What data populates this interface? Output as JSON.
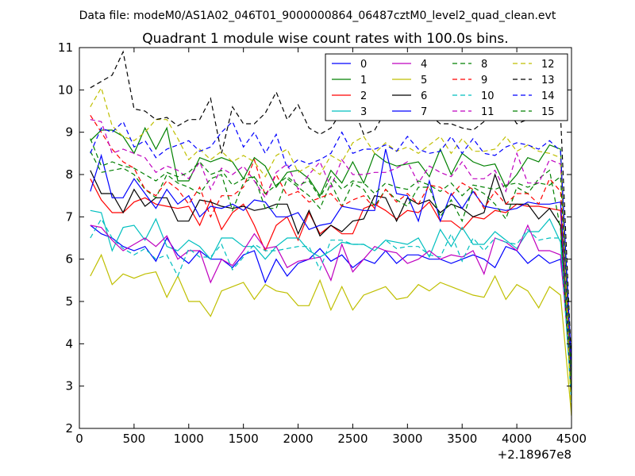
{
  "chart_data": {
    "type": "line",
    "suptitle": "Data file: modeM0/AS1A02_046T01_9000000864_06487cztM0_level2_quad_clean.evt",
    "title": "Quadrant 1 module wise count rates with 100.0s bins.",
    "xlabel": "",
    "ylabel": "",
    "x_offset_label": "+2.18967e8",
    "xlim": [
      0,
      4500
    ],
    "ylim": [
      2,
      11
    ],
    "xticks": [
      0,
      500,
      1000,
      1500,
      2000,
      2500,
      3000,
      3500,
      4000,
      4500
    ],
    "yticks": [
      2,
      3,
      4,
      5,
      6,
      7,
      8,
      9,
      10,
      11
    ],
    "x": [
      100,
      200,
      300,
      400,
      500,
      600,
      700,
      800,
      900,
      1000,
      1100,
      1200,
      1300,
      1400,
      1500,
      1600,
      1700,
      1800,
      1900,
      2000,
      2100,
      2200,
      2300,
      2400,
      2500,
      2600,
      2700,
      2800,
      2900,
      3000,
      3100,
      3200,
      3300,
      3400,
      3500,
      3600,
      3700,
      3800,
      3900,
      4000,
      4100,
      4200,
      4300,
      4400,
      4500
    ],
    "legend_position": "top-right",
    "series": [
      {
        "name": "0",
        "color": "#0000ff",
        "dash": "solid",
        "values": [
          6.8,
          6.6,
          6.5,
          6.3,
          6.2,
          6.3,
          5.95,
          6.5,
          6.1,
          5.9,
          6.2,
          6.0,
          6.0,
          5.8,
          6.1,
          6.2,
          5.45,
          6.0,
          5.6,
          5.9,
          6.0,
          6.25,
          5.95,
          6.1,
          5.8,
          6.0,
          5.9,
          6.2,
          5.9,
          6.1,
          6.1,
          6.0,
          6.0,
          5.9,
          6.0,
          6.1,
          6.0,
          5.8,
          6.3,
          6.2,
          5.9,
          6.1,
          5.9,
          6.0,
          3.5
        ]
      },
      {
        "name": "1",
        "color": "#008000",
        "dash": "solid",
        "values": [
          8.8,
          9.05,
          9.05,
          8.9,
          8.5,
          9.1,
          8.6,
          9.1,
          7.85,
          7.85,
          8.4,
          8.3,
          8.4,
          8.3,
          7.9,
          8.4,
          8.2,
          7.7,
          8.05,
          8.1,
          7.9,
          7.5,
          8.1,
          7.8,
          8.3,
          7.8,
          8.5,
          8.3,
          8.2,
          8.25,
          8.3,
          7.95,
          8.6,
          8.0,
          8.5,
          8.3,
          8.2,
          8.25,
          7.7,
          8.0,
          8.4,
          8.3,
          8.7,
          8.6,
          3.0
        ]
      },
      {
        "name": "2",
        "color": "#ff0000",
        "dash": "solid",
        "values": [
          7.9,
          7.4,
          7.1,
          7.1,
          7.35,
          7.45,
          7.3,
          7.25,
          7.2,
          7.25,
          6.8,
          7.4,
          6.7,
          7.1,
          7.3,
          6.8,
          6.2,
          6.8,
          7.0,
          6.45,
          7.1,
          6.6,
          6.8,
          6.6,
          6.6,
          7.2,
          7.3,
          7.15,
          6.95,
          7.15,
          7.1,
          7.35,
          6.9,
          6.9,
          6.7,
          7.0,
          6.95,
          7.15,
          7.1,
          7.3,
          7.25,
          7.25,
          7.2,
          7.15,
          3.2
        ]
      },
      {
        "name": "3",
        "color": "#00bfbf",
        "dash": "solid",
        "values": [
          7.15,
          7.1,
          6.2,
          6.75,
          6.8,
          6.45,
          6.95,
          6.3,
          6.2,
          6.45,
          6.3,
          6.0,
          6.5,
          6.5,
          6.3,
          6.3,
          6.0,
          6.3,
          6.5,
          6.5,
          6.2,
          6.05,
          6.2,
          6.4,
          6.35,
          6.35,
          6.2,
          6.45,
          6.4,
          6.35,
          6.5,
          6.05,
          6.7,
          6.3,
          6.75,
          6.35,
          6.35,
          6.65,
          6.45,
          6.25,
          6.65,
          6.65,
          6.95,
          6.4,
          2.8
        ]
      },
      {
        "name": "4",
        "color": "#bf00bf",
        "dash": "solid",
        "values": [
          6.8,
          6.75,
          6.45,
          6.2,
          6.35,
          6.5,
          6.3,
          6.55,
          6.0,
          6.2,
          6.2,
          5.45,
          6.0,
          5.85,
          6.2,
          6.6,
          6.25,
          6.3,
          5.8,
          5.95,
          6.0,
          6.05,
          5.5,
          6.35,
          5.7,
          6.0,
          6.3,
          6.2,
          6.15,
          5.9,
          6.0,
          6.2,
          6.0,
          6.1,
          6.05,
          6.2,
          5.65,
          6.5,
          6.4,
          6.2,
          6.8,
          6.2,
          6.2,
          6.1,
          3.1
        ]
      },
      {
        "name": "5",
        "color": "#bfbf00",
        "dash": "solid",
        "values": [
          5.6,
          6.1,
          5.4,
          5.65,
          5.55,
          5.65,
          5.7,
          5.1,
          5.6,
          5.0,
          5.0,
          4.65,
          5.25,
          5.35,
          5.45,
          5.05,
          5.4,
          5.25,
          5.2,
          4.9,
          4.9,
          5.5,
          4.8,
          5.35,
          4.8,
          5.15,
          5.25,
          5.35,
          5.05,
          5.1,
          5.4,
          5.25,
          5.45,
          5.35,
          5.25,
          5.15,
          5.1,
          5.6,
          5.05,
          5.4,
          5.25,
          4.85,
          5.35,
          5.15,
          2.3
        ]
      },
      {
        "name": "6",
        "color": "#000000",
        "dash": "solid",
        "values": [
          8.1,
          7.55,
          7.55,
          7.1,
          7.65,
          7.25,
          7.45,
          7.45,
          6.9,
          6.9,
          7.4,
          7.35,
          7.25,
          7.2,
          7.25,
          7.15,
          7.2,
          7.3,
          7.3,
          6.6,
          7.15,
          6.55,
          6.8,
          6.65,
          6.9,
          6.95,
          7.5,
          7.45,
          6.9,
          7.45,
          7.3,
          7.4,
          7.1,
          7.3,
          7.2,
          7.0,
          7.1,
          8.0,
          7.3,
          7.3,
          7.3,
          6.95,
          7.2,
          6.8,
          2.7
        ]
      },
      {
        "name": "7",
        "color": "#0000ff",
        "dash": "solid",
        "values": [
          7.6,
          8.45,
          7.45,
          7.45,
          7.9,
          7.55,
          7.2,
          7.65,
          7.3,
          7.5,
          7.0,
          7.25,
          7.2,
          7.3,
          7.15,
          7.4,
          7.35,
          7.0,
          7.0,
          7.1,
          6.7,
          6.8,
          6.85,
          7.25,
          7.2,
          7.15,
          7.15,
          8.6,
          7.55,
          7.5,
          6.9,
          7.85,
          6.9,
          7.55,
          7.2,
          7.6,
          7.25,
          7.2,
          7.15,
          7.2,
          7.35,
          7.3,
          7.3,
          7.35,
          3.2
        ]
      },
      {
        "name": "8",
        "color": "#008000",
        "dash": "dashed",
        "values": [
          8.55,
          8.05,
          8.1,
          8.15,
          8.0,
          7.65,
          7.45,
          8.0,
          7.8,
          7.7,
          7.55,
          7.9,
          8.0,
          7.15,
          7.8,
          7.95,
          7.2,
          7.2,
          7.9,
          7.7,
          7.5,
          7.2,
          7.8,
          7.25,
          7.8,
          7.65,
          7.25,
          7.65,
          7.4,
          7.25,
          7.7,
          7.7,
          7.0,
          7.4,
          6.9,
          7.7,
          7.55,
          7.3,
          6.95,
          7.7,
          7.55,
          7.9,
          8.1,
          6.7,
          3.0
        ]
      },
      {
        "name": "9",
        "color": "#ff0000",
        "dash": "dashed",
        "values": [
          9.4,
          9.0,
          8.6,
          8.3,
          8.15,
          7.65,
          7.5,
          7.85,
          7.65,
          7.3,
          7.7,
          7.0,
          7.5,
          7.5,
          7.7,
          8.35,
          7.5,
          8.0,
          7.5,
          7.6,
          7.35,
          7.45,
          7.55,
          7.25,
          7.4,
          7.5,
          7.2,
          7.65,
          7.35,
          7.55,
          7.3,
          7.75,
          7.7,
          7.5,
          7.8,
          7.65,
          7.2,
          7.6,
          7.3,
          7.55,
          7.55,
          7.3,
          7.9,
          7.6,
          3.4
        ]
      },
      {
        "name": "10",
        "color": "#00bfbf",
        "dash": "dashed",
        "values": [
          6.5,
          6.95,
          6.5,
          6.25,
          6.1,
          6.25,
          6.0,
          6.1,
          5.6,
          6.25,
          6.05,
          6.05,
          6.35,
          5.75,
          6.05,
          6.35,
          6.2,
          6.2,
          6.25,
          6.3,
          6.3,
          5.75,
          6.45,
          6.45,
          6.35,
          6.35,
          6.2,
          6.45,
          6.25,
          6.3,
          6.3,
          6.1,
          6.05,
          6.6,
          5.95,
          6.5,
          6.2,
          6.5,
          6.4,
          6.35,
          6.7,
          6.45,
          6.5,
          6.5,
          2.6
        ]
      },
      {
        "name": "11",
        "color": "#bf00bf",
        "dash": "dashed",
        "values": [
          9.3,
          9.25,
          8.5,
          8.6,
          8.5,
          8.4,
          8.05,
          8.2,
          8.1,
          7.9,
          8.3,
          7.65,
          8.15,
          8.0,
          8.2,
          7.85,
          7.45,
          8.05,
          8.25,
          7.65,
          8.0,
          8.3,
          7.7,
          8.35,
          8.0,
          8.0,
          8.05,
          8.05,
          8.15,
          8.3,
          7.8,
          8.2,
          8.05,
          7.95,
          8.3,
          7.9,
          7.9,
          8.1,
          7.6,
          8.5,
          7.8,
          7.8,
          8.35,
          8.25,
          3.1
        ]
      },
      {
        "name": "12",
        "color": "#bfbf00",
        "dash": "dashed",
        "values": [
          9.6,
          10.05,
          9.15,
          8.9,
          8.8,
          9.0,
          9.3,
          9.3,
          8.85,
          8.35,
          8.6,
          8.35,
          8.55,
          8.3,
          8.45,
          8.3,
          7.95,
          8.45,
          8.6,
          8.05,
          8.2,
          8.0,
          8.45,
          8.3,
          8.75,
          8.9,
          8.5,
          8.75,
          8.55,
          8.65,
          8.5,
          8.7,
          8.9,
          8.5,
          8.85,
          8.55,
          8.55,
          8.6,
          8.9,
          8.55,
          8.7,
          8.55,
          8.5,
          8.4,
          2.3
        ]
      },
      {
        "name": "13",
        "color": "#000000",
        "dash": "dashed",
        "values": [
          10.05,
          10.2,
          10.35,
          10.9,
          9.55,
          9.5,
          9.3,
          9.35,
          9.15,
          9.3,
          9.3,
          9.8,
          8.5,
          9.6,
          9.2,
          9.2,
          9.45,
          9.95,
          9.3,
          9.65,
          9.1,
          8.95,
          9.1,
          9.5,
          9.65,
          8.95,
          9.05,
          9.5,
          9.8,
          9.5,
          9.45,
          9.4,
          9.2,
          9.2,
          9.1,
          9.05,
          9.25,
          9.5,
          9.6,
          9.2,
          9.3,
          9.6,
          9.5,
          9.4,
          3.5
        ]
      },
      {
        "name": "14",
        "color": "#0000ff",
        "dash": "dashed",
        "values": [
          8.5,
          9.1,
          9.0,
          9.25,
          8.65,
          8.8,
          8.4,
          8.6,
          8.7,
          8.8,
          8.55,
          8.65,
          9.0,
          9.25,
          8.65,
          9.0,
          8.5,
          8.95,
          8.15,
          8.35,
          8.25,
          8.35,
          8.5,
          9.0,
          8.5,
          8.6,
          8.6,
          8.7,
          8.55,
          8.9,
          8.6,
          8.5,
          8.55,
          8.9,
          8.5,
          8.85,
          8.5,
          8.45,
          8.65,
          8.75,
          8.7,
          8.6,
          8.8,
          8.55,
          3.5
        ]
      },
      {
        "name": "15",
        "color": "#008000",
        "dash": "dashed",
        "values": [
          8.85,
          8.2,
          8.3,
          8.2,
          8.15,
          8.0,
          7.85,
          8.05,
          7.95,
          8.05,
          8.3,
          8.0,
          8.1,
          7.75,
          7.9,
          7.95,
          7.55,
          7.75,
          7.95,
          7.75,
          7.85,
          7.45,
          7.95,
          7.65,
          7.85,
          7.8,
          7.55,
          7.8,
          7.7,
          7.65,
          7.85,
          7.75,
          7.6,
          7.8,
          7.5,
          7.75,
          7.7,
          7.65,
          7.75,
          7.8,
          7.7,
          7.8,
          7.75,
          7.95,
          3.2
        ]
      }
    ]
  }
}
